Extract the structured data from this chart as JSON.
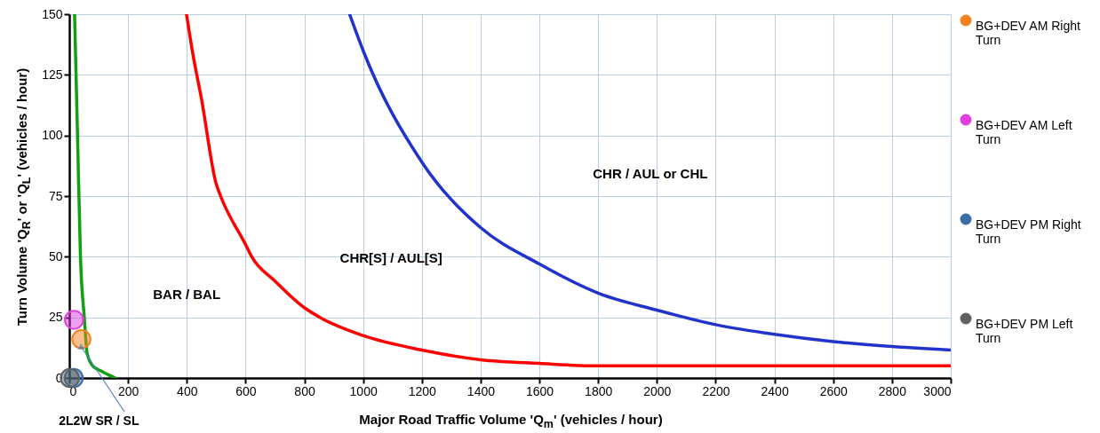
{
  "chart_data": {
    "type": "line",
    "xlabel": "Major Road Traffic Volume 'Q$_{m}$' (vehicles / hour)",
    "ylabel": "Turn Volume 'Q$_{R}$' or 'Q$_{L}$' (vehicles / hour)",
    "xlim": [
      0,
      3000
    ],
    "xticks": [
      0,
      200,
      400,
      600,
      800,
      1000,
      1200,
      1400,
      1600,
      1800,
      2000,
      2200,
      2400,
      2600,
      2800,
      3000
    ],
    "ylim": [
      0,
      150
    ],
    "yticks": [
      0,
      25,
      50,
      75,
      100,
      125,
      150
    ],
    "grid": true,
    "legend": "right",
    "line_style": "solid",
    "series": [
      {
        "color": "#12a012",
        "x": [
          18,
          28,
          38,
          51,
          61,
          80,
          106,
          130,
          157
        ],
        "values": [
          150,
          100,
          50,
          25,
          10,
          5,
          3,
          1.5,
          0
        ]
      },
      {
        "color": "#ff0000",
        "x": [
          399,
          420,
          450,
          500,
          515,
          600,
          621,
          700,
          800,
          853,
          1000,
          1200,
          1400,
          1600,
          1800,
          2000,
          2400,
          3000
        ],
        "values": [
          150,
          134,
          115,
          80,
          75,
          55,
          50,
          40,
          29,
          25,
          17.5,
          11.5,
          7.5,
          6,
          5,
          5,
          5,
          5
        ]
      },
      {
        "color": "#2233cc",
        "x": [
          954,
          1000,
          1200,
          1400,
          1600,
          1800,
          2000,
          2200,
          2400,
          2600,
          2800,
          3000
        ],
        "values": [
          150,
          135,
          89,
          62,
          47,
          35,
          28,
          22,
          18,
          15,
          13,
          11.5
        ]
      },
      {
        "type": "scatter",
        "marker": "circle",
        "name": "BG+DEV AM Right Turn",
        "color": "#f58220",
        "x": [
          41
        ],
        "values": [
          16
        ]
      },
      {
        "type": "scatter",
        "marker": "circle",
        "name": "BG+DEV AM Left Turn",
        "color": "#e040e0",
        "x": [
          16
        ],
        "values": [
          24
        ]
      },
      {
        "type": "scatter",
        "marker": "circle",
        "name": "BG+DEV PM Right Turn",
        "color": "#3a6ea5",
        "x": [
          15
        ],
        "values": [
          0
        ]
      },
      {
        "type": "scatter",
        "marker": "circle",
        "name": "BG+DEV PM Left Turn",
        "color": "#606060",
        "x": [
          2
        ],
        "values": [
          0
        ]
      }
    ],
    "annotations": [
      "BAR / BAL",
      "CHR[S] / AUL[S]",
      "CHR / AUL  or CHL",
      {
        "text": "2L2W SR / SL",
        "x": 40,
        "y": 13
      }
    ]
  }
}
